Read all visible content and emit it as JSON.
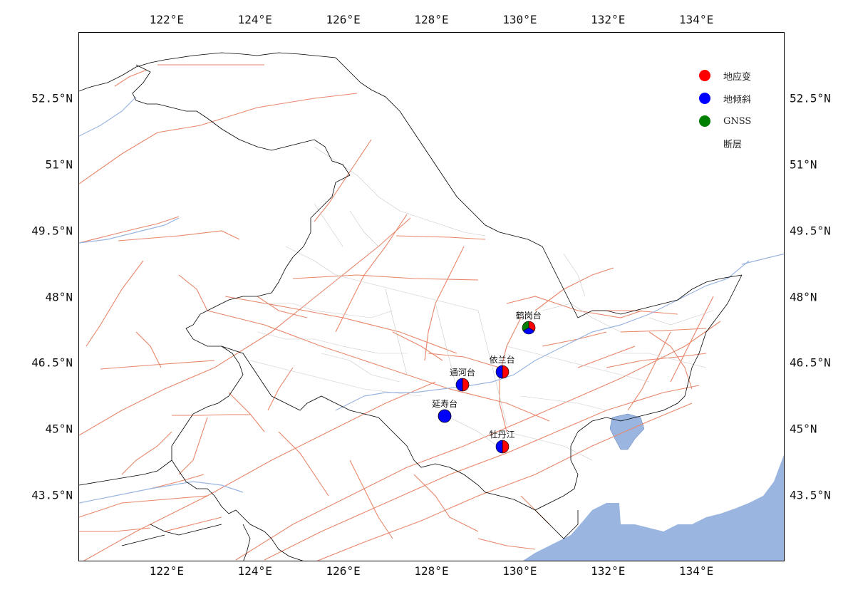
{
  "colors": {
    "strain": "#ff0000",
    "tilt": "#0000ff",
    "gnss": "#008000",
    "fault": "#e8866a",
    "water": "#9ab5e0",
    "border": "#000000",
    "county": "#c8c8c8",
    "river": "#9ab5e0"
  },
  "axes": {
    "lon_ticks": [
      "122°E",
      "124°E",
      "126°E",
      "128°E",
      "130°E",
      "132°E",
      "134°E"
    ],
    "lat_ticks": [
      "52.5°N",
      "51°N",
      "49.5°N",
      "48°N",
      "46.5°N",
      "45°N",
      "43.5°N"
    ],
    "lon_values": [
      122,
      124,
      126,
      128,
      130,
      132,
      134
    ],
    "lat_values": [
      52.5,
      51,
      49.5,
      48,
      46.5,
      45,
      43.5
    ],
    "lon_range": [
      120,
      136
    ],
    "lat_range": [
      42,
      54
    ]
  },
  "legend": {
    "items": [
      {
        "label": "地应变",
        "icon": "red-circle"
      },
      {
        "label": "地倾斜",
        "icon": "blue-circle"
      },
      {
        "label": "GNSS",
        "icon": "green-circle"
      },
      {
        "label": "断层",
        "icon": "fault-line"
      }
    ]
  },
  "stations": [
    {
      "name": "鹤岗台",
      "lon": 130.2,
      "lat": 47.3,
      "parts": [
        "strain",
        "tilt",
        "gnss"
      ]
    },
    {
      "name": "依兰台",
      "lon": 129.6,
      "lat": 46.3,
      "parts": [
        "strain",
        "tilt"
      ]
    },
    {
      "name": "通河台",
      "lon": 128.7,
      "lat": 46.0,
      "parts": [
        "strain",
        "tilt"
      ]
    },
    {
      "name": "延寿台",
      "lon": 128.3,
      "lat": 45.3,
      "parts": [
        "tilt"
      ]
    },
    {
      "name": "牡丹江",
      "lon": 129.6,
      "lat": 44.6,
      "parts": [
        "strain",
        "tilt"
      ]
    }
  ]
}
